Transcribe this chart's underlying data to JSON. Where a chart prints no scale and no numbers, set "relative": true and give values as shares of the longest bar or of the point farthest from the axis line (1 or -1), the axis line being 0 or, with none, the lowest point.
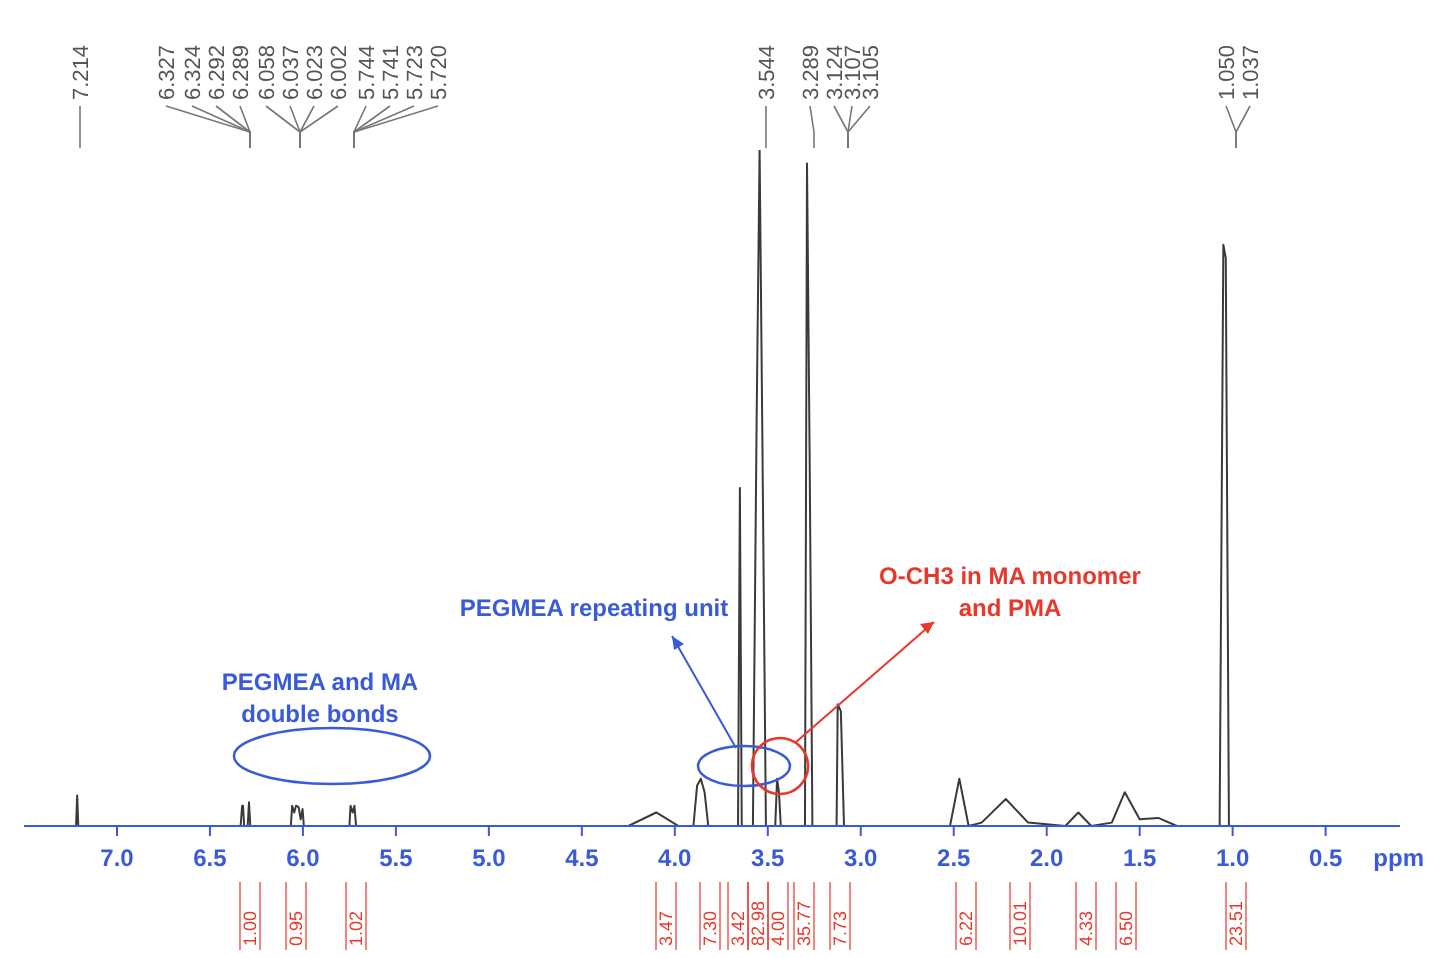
{
  "chart_data": {
    "type": "line",
    "relative": true,
    "color": "#3a3a3a",
    "marker": "none",
    "xlabel": "ppm",
    "xlim": [
      7.5,
      0.1
    ],
    "xticks": [
      {
        "value": 7,
        "label": "7.0"
      },
      6.5,
      {
        "value": 6,
        "label": "6.0"
      },
      5.5,
      {
        "value": 5,
        "label": "5.0"
      },
      4.5,
      {
        "value": 4,
        "label": "4.0"
      },
      3.5,
      {
        "value": 3,
        "label": "3.0"
      },
      2.5,
      {
        "value": 2,
        "label": "2.0"
      },
      1.5,
      {
        "value": 1,
        "label": "1.0"
      },
      0.5
    ],
    "x": [
      7.5,
      7.22,
      7.214,
      7.208,
      6.335,
      6.327,
      6.322,
      6.316,
      6.297,
      6.29,
      6.283,
      6.065,
      6.058,
      6.047,
      6.037,
      6.023,
      6.012,
      6.002,
      5.995,
      5.75,
      5.744,
      5.732,
      5.723,
      5.714,
      4.25,
      4.1,
      3.98,
      3.9,
      3.88,
      3.86,
      3.84,
      3.82,
      3.66,
      3.65,
      3.64,
      3.58,
      3.56,
      3.544,
      3.53,
      3.51,
      3.46,
      3.45,
      3.44,
      3.43,
      3.3,
      3.289,
      3.275,
      3.26,
      3.13,
      3.124,
      3.107,
      3.105,
      3.09,
      2.52,
      2.47,
      2.42,
      2.35,
      2.22,
      2.1,
      1.9,
      1.83,
      1.76,
      1.65,
      1.58,
      1.5,
      1.4,
      1.3,
      1.07,
      1.05,
      1.037,
      1.02,
      0.1
    ],
    "values": [
      0,
      0,
      0.045,
      0,
      0,
      0.03,
      0.03,
      0,
      0,
      0.035,
      0,
      0,
      0.03,
      0.02,
      0.03,
      0.028,
      0.01,
      0.025,
      0,
      0,
      0.03,
      0.02,
      0.03,
      0,
      0,
      0.02,
      0,
      0,
      0.06,
      0.07,
      0.05,
      0,
      0,
      0.5,
      0,
      0,
      0.6,
      1.0,
      0.6,
      0,
      0,
      0.07,
      0.05,
      0,
      0,
      0.98,
      0.55,
      0,
      0,
      0.18,
      0.17,
      0.15,
      0,
      0,
      0.07,
      0,
      0.005,
      0.04,
      0.005,
      0,
      0.02,
      0,
      0.005,
      0.05,
      0.01,
      0.012,
      0,
      0,
      0.86,
      0.84,
      0,
      0
    ],
    "annotations": [
      "PEGMEA and MA\ndouble bonds",
      "PEGMEA repeating unit",
      "O-CH3 in MA monomer\nand PMA",
      "7.214",
      "6.327",
      "6.324",
      "6.292",
      "6.289",
      "6.058",
      "6.037",
      "6.023",
      "6.002",
      "5.744",
      "5.741",
      "5.723",
      "5.720",
      "3.544",
      "3.289",
      "3.124",
      "3.107",
      "3.105",
      "1.050",
      "1.037",
      "1.00",
      "0.95",
      "1.02",
      "3.47",
      "7.30",
      "3.42",
      "82.98",
      "4.00",
      "35.77",
      "7.73",
      "6.22",
      "10.01",
      "4.33",
      "6.50",
      "23.51"
    ]
  }
}
